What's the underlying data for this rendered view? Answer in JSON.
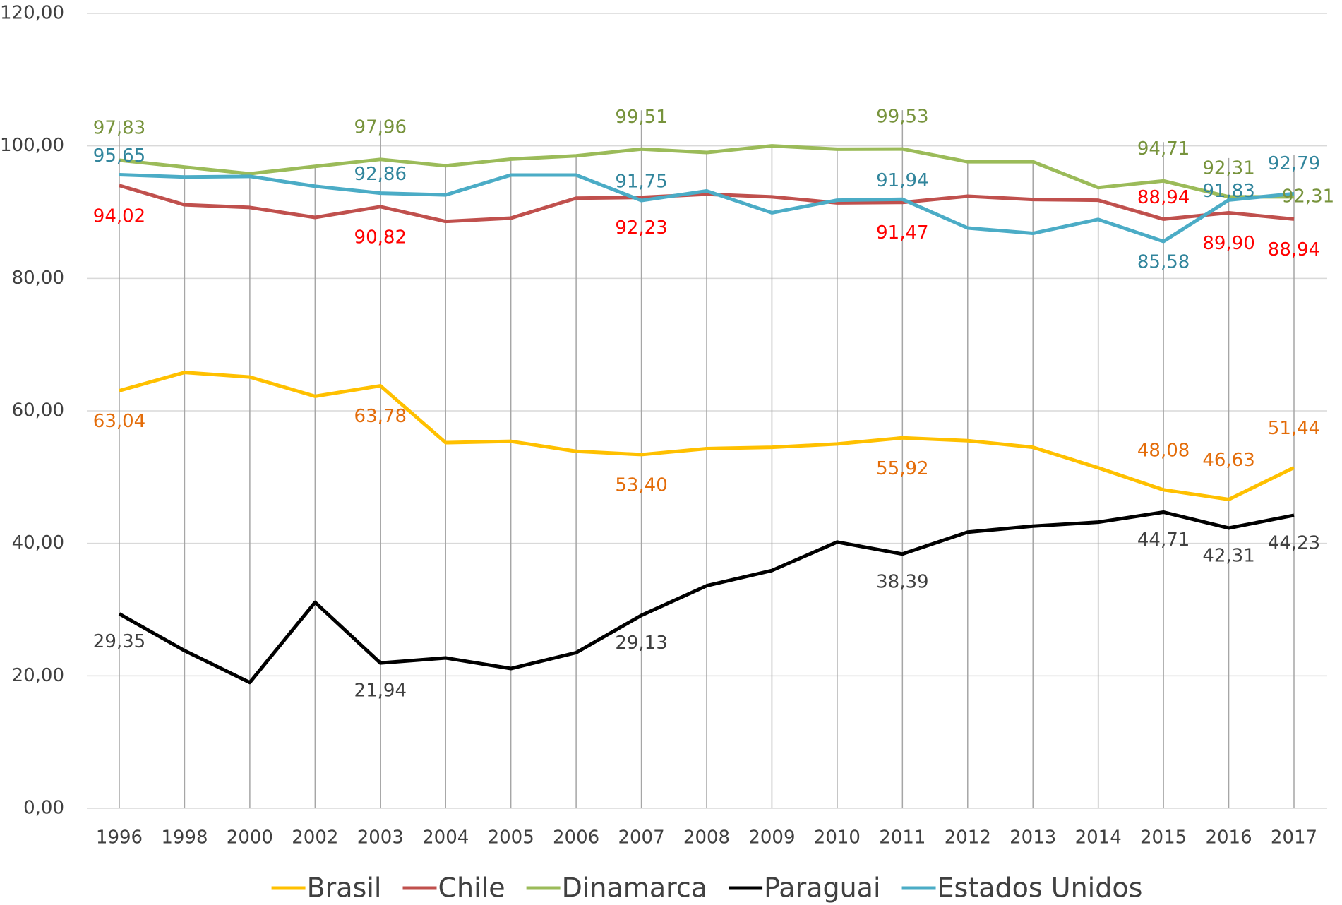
{
  "chart_data": {
    "type": "line",
    "categories": [
      "1996",
      "1998",
      "2000",
      "2002",
      "2003",
      "2004",
      "2005",
      "2006",
      "2007",
      "2008",
      "2009",
      "2010",
      "2011",
      "2012",
      "2013",
      "2014",
      "2015",
      "2016",
      "2017"
    ],
    "ylim": [
      0,
      120
    ],
    "yticks": [
      {
        "value": 0,
        "label": "0,00"
      },
      {
        "value": 20,
        "label": "20,00"
      },
      {
        "value": 40,
        "label": "40,00"
      },
      {
        "value": 60,
        "label": "60,00"
      },
      {
        "value": 80,
        "label": "80,00"
      },
      {
        "value": 100,
        "label": "100,00"
      },
      {
        "value": 120,
        "label": "120,00"
      }
    ],
    "grid": true,
    "legend": "bottom",
    "series": [
      {
        "name": "Brasil",
        "color": "#ffc000",
        "label_color": "#e36c09",
        "values": [
          63.04,
          65.8,
          65.1,
          62.2,
          63.78,
          55.2,
          55.4,
          53.9,
          53.4,
          54.3,
          54.5,
          55.0,
          55.92,
          55.5,
          54.5,
          51.4,
          48.08,
          46.63,
          51.44
        ],
        "value_labels": [
          "63,04",
          null,
          null,
          null,
          "63,78",
          null,
          null,
          null,
          "53,40",
          null,
          null,
          null,
          "55,92",
          null,
          null,
          null,
          "48,08",
          "46,63",
          "51,44"
        ]
      },
      {
        "name": "Chile",
        "color": "#c0504d",
        "label_color": "#ff0000",
        "values": [
          94.02,
          91.1,
          90.7,
          89.2,
          90.82,
          88.6,
          89.1,
          92.1,
          92.23,
          92.7,
          92.3,
          91.4,
          91.47,
          92.4,
          91.9,
          91.8,
          88.94,
          89.9,
          88.94
        ],
        "value_labels": [
          "94,02",
          null,
          null,
          null,
          "90,82",
          null,
          null,
          null,
          "92,23",
          null,
          null,
          null,
          "91,47",
          null,
          null,
          null,
          "88,94",
          "89,90",
          "88,94"
        ]
      },
      {
        "name": "Dinamarca",
        "color": "#9bbb59",
        "label_color": "#77933c",
        "values": [
          97.83,
          96.8,
          95.8,
          96.9,
          97.96,
          97.0,
          98.0,
          98.5,
          99.51,
          99.0,
          100.0,
          99.5,
          99.53,
          97.6,
          97.6,
          93.7,
          94.71,
          92.31,
          92.31
        ],
        "value_labels": [
          "97,83",
          null,
          null,
          null,
          "97,96",
          null,
          null,
          null,
          "99,51",
          null,
          null,
          null,
          "99,53",
          null,
          null,
          null,
          "94,71",
          "92,31",
          "92,31"
        ]
      },
      {
        "name": "Paraguai",
        "color": "#000000",
        "label_color": "#404040",
        "values": [
          29.35,
          23.8,
          19.0,
          31.1,
          21.94,
          22.7,
          21.1,
          23.5,
          29.13,
          33.6,
          35.9,
          40.2,
          38.39,
          41.7,
          42.6,
          43.2,
          44.71,
          42.31,
          44.23
        ],
        "value_labels": [
          "29,35",
          null,
          null,
          null,
          "21,94",
          null,
          null,
          null,
          "29,13",
          null,
          null,
          null,
          "38,39",
          null,
          null,
          null,
          "44,71",
          "42,31",
          "44,23"
        ]
      },
      {
        "name": "Estados Unidos",
        "color": "#4bacc6",
        "label_color": "#31859c",
        "values": [
          95.65,
          95.3,
          95.4,
          93.9,
          92.86,
          92.6,
          95.6,
          95.6,
          91.75,
          93.2,
          89.9,
          91.8,
          91.94,
          87.6,
          86.8,
          88.9,
          85.58,
          91.83,
          92.79
        ],
        "value_labels": [
          "95,65",
          null,
          null,
          null,
          "92,86",
          null,
          null,
          null,
          "91,75",
          null,
          null,
          null,
          "91,94",
          null,
          null,
          null,
          "85,58",
          "91,83",
          "92,79"
        ]
      }
    ]
  }
}
